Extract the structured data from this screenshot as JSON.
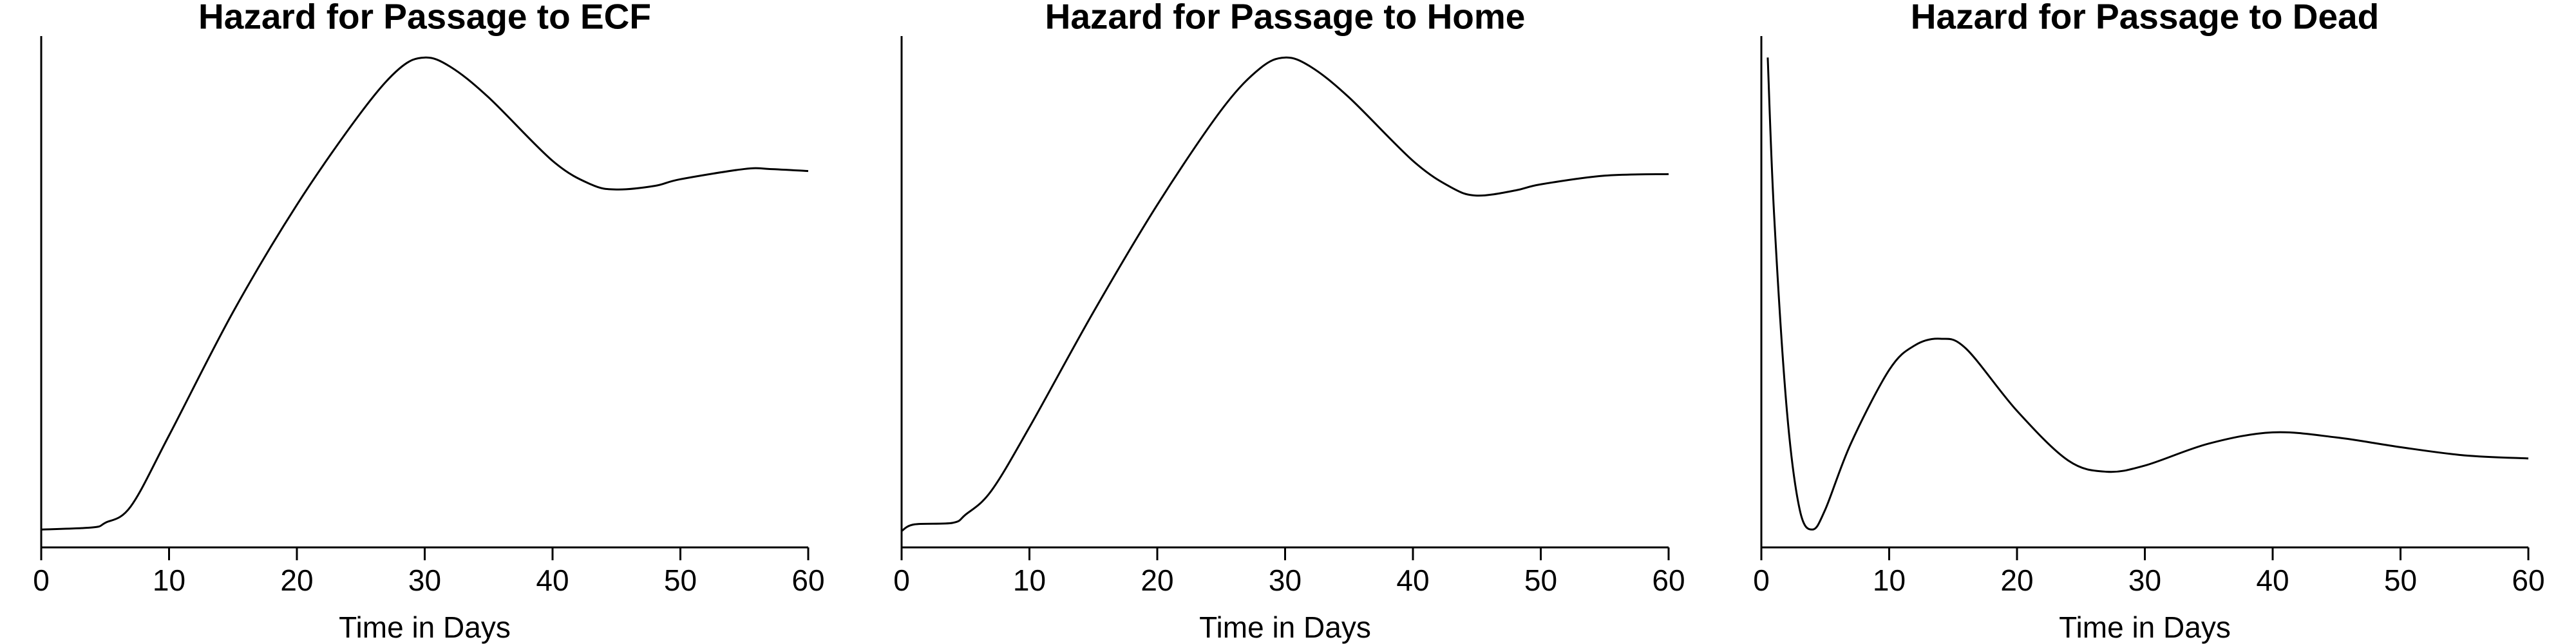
{
  "chart_data": [
    {
      "type": "line",
      "title": "Hazard for Passage to ECF",
      "x_label": "Time in Days",
      "xlim": [
        0,
        60
      ],
      "xticks": [
        0,
        10,
        20,
        30,
        40,
        50,
        60
      ],
      "ylim": [
        0,
        100
      ],
      "color": "#000000",
      "x": [
        0,
        4,
        5,
        7,
        10,
        15,
        20,
        25,
        28,
        30,
        32,
        35,
        40,
        43,
        45,
        48,
        50,
        55,
        57,
        60
      ],
      "values": [
        3.5,
        3.9,
        4.8,
        8,
        21.9,
        46,
        67,
        85,
        93.6,
        95.8,
        94,
        88,
        75.6,
        71,
        70,
        70.7,
        72,
        74,
        74,
        73.6
      ]
    },
    {
      "type": "line",
      "title": "Hazard for Passage to Home",
      "x_label": "Time in Days",
      "xlim": [
        0,
        60
      ],
      "xticks": [
        0,
        10,
        20,
        30,
        40,
        50,
        60
      ],
      "ylim": [
        0,
        100
      ],
      "color": "#000000",
      "x": [
        0,
        1,
        4,
        5,
        7,
        10,
        15,
        20,
        25,
        28,
        30,
        32,
        35,
        40,
        43,
        45,
        48,
        50,
        55,
        60
      ],
      "values": [
        3.2,
        4.5,
        4.8,
        6.4,
        11,
        23.5,
        46,
        67,
        85.5,
        93.6,
        95.8,
        94,
        88,
        75.6,
        70.4,
        68.8,
        69.8,
        71,
        72.7,
        73
      ]
    },
    {
      "type": "line",
      "title": "Hazard for Passage to Dead",
      "x_label": "Time in Days",
      "xlim": [
        0,
        60
      ],
      "xticks": [
        0,
        10,
        20,
        30,
        40,
        50,
        60
      ],
      "ylim": [
        0,
        100
      ],
      "color": "#000000",
      "x": [
        0.5,
        1,
        2,
        3,
        4,
        5,
        7,
        10,
        12,
        14,
        16,
        20,
        24,
        27,
        30,
        35,
        40,
        45,
        50,
        55,
        60
      ],
      "values": [
        95.8,
        65,
        26.7,
        7.4,
        3.5,
        7.4,
        20.3,
        34.7,
        39.5,
        40.8,
        38.9,
        26.7,
        17,
        14.8,
        16,
        20.3,
        22.5,
        21.5,
        19.6,
        18,
        17.4
      ]
    }
  ]
}
